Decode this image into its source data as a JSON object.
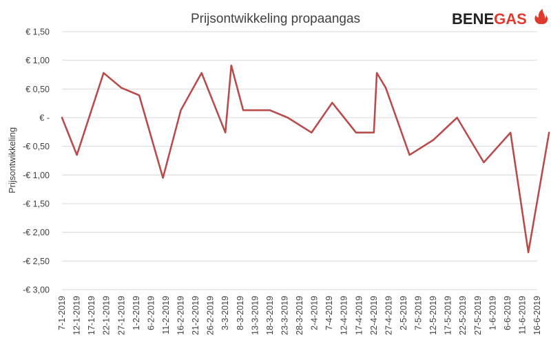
{
  "chart_data": {
    "type": "line",
    "title": "Prijsontwikkeling propaangas",
    "ylabel": "Prijsontwikkeling",
    "xlabel": "",
    "ylim": [
      -3.0,
      1.5
    ],
    "yticks": [
      1.5,
      1.0,
      0.5,
      0,
      -0.5,
      -1.0,
      -1.5,
      -2.0,
      -2.5,
      -3.0
    ],
    "ytick_labels": [
      "€ 1,50",
      "€ 1,00",
      "€ 0,50",
      "€ -",
      "-€ 0,50",
      "-€ 1,00",
      "-€ 1,50",
      "-€ 2,00",
      "-€ 2,50",
      "-€ 3,00"
    ],
    "grid": true,
    "categories": [
      "7-1-2019",
      "12-1-2019",
      "17-1-2019",
      "22-1-2019",
      "27-1-2019",
      "1-2-2019",
      "6-2-2019",
      "11-2-2019",
      "16-2-2019",
      "21-2-2019",
      "26-2-2019",
      "3-3-2019",
      "8-3-2019",
      "13-3-2019",
      "18-3-2019",
      "23-3-2019",
      "28-3-2019",
      "2-4-2019",
      "7-4-2019",
      "12-4-2019",
      "17-4-2019",
      "22-4-2019",
      "27-4-2019",
      "2-5-2019",
      "7-5-2019",
      "12-5-2019",
      "17-5-2019",
      "22-5-2019",
      "27-5-2019",
      "1-6-2019",
      "6-6-2019",
      "11-6-2019",
      "16-6-2019"
    ],
    "series": [
      {
        "color": "#b94b4b",
        "points": [
          [
            "7-1-2019",
            0.0
          ],
          [
            "12-1-2019",
            -0.65
          ],
          [
            "21-1-2019",
            0.78
          ],
          [
            "27-1-2019",
            0.52
          ],
          [
            "2-2-2019",
            0.39
          ],
          [
            "10-2-2019",
            -1.05
          ],
          [
            "16-2-2019",
            0.13
          ],
          [
            "23-2-2019",
            0.78
          ],
          [
            "3-3-2019",
            -0.26
          ],
          [
            "5-3-2019",
            0.91
          ],
          [
            "9-3-2019",
            0.13
          ],
          [
            "18-3-2019",
            0.13
          ],
          [
            "24-3-2019",
            0.0
          ],
          [
            "1-4-2019",
            -0.26
          ],
          [
            "8-4-2019",
            0.26
          ],
          [
            "16-4-2019",
            -0.26
          ],
          [
            "22-4-2019",
            -0.26
          ],
          [
            "23-4-2019",
            0.78
          ],
          [
            "26-4-2019",
            0.52
          ],
          [
            "4-5-2019",
            -0.65
          ],
          [
            "12-5-2019",
            -0.39
          ],
          [
            "20-5-2019",
            0.0
          ],
          [
            "29-5-2019",
            -0.78
          ],
          [
            "7-6-2019",
            -0.26
          ],
          [
            "13-6-2019",
            -2.35
          ],
          [
            "20-6-2019",
            -0.26
          ]
        ]
      }
    ]
  },
  "logo": {
    "text_bene": "BENE",
    "text_gas": "GAS",
    "color_dark": "#222222",
    "color_red": "#e03a2f"
  }
}
